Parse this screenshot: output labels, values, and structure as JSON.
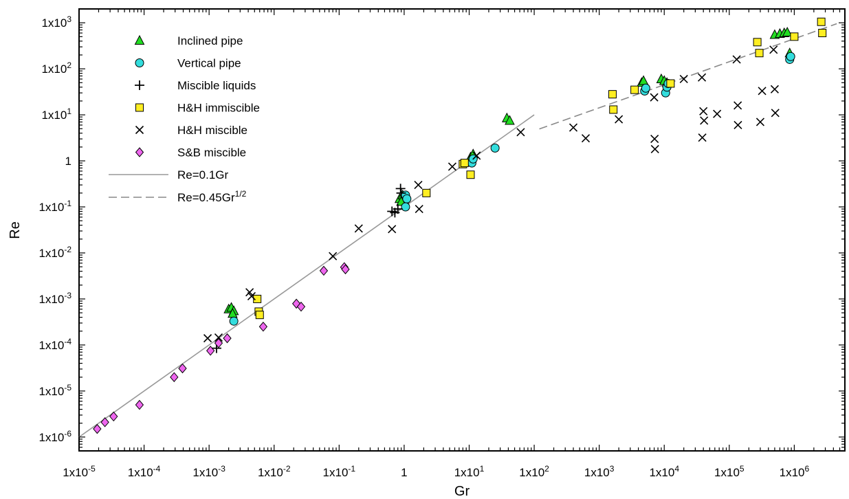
{
  "chart_data": {
    "type": "scatter",
    "xlabel": "Gr",
    "ylabel": "Re",
    "xscale": "log",
    "yscale": "log",
    "xlim": [
      1e-05,
      6000000.0
    ],
    "ylim": [
      5e-07,
      2000.0
    ],
    "xticks": [
      {
        "value": 1e-05,
        "label": "1x10",
        "exp": "-5"
      },
      {
        "value": 0.0001,
        "label": "1x10",
        "exp": "-4"
      },
      {
        "value": 0.001,
        "label": "1x10",
        "exp": "-3"
      },
      {
        "value": 0.01,
        "label": "1x10",
        "exp": "-2"
      },
      {
        "value": 0.1,
        "label": "1x10",
        "exp": "-1"
      },
      {
        "value": 1,
        "label": "1",
        "exp": ""
      },
      {
        "value": 10,
        "label": "1x10",
        "exp": "1"
      },
      {
        "value": 100,
        "label": "1x10",
        "exp": "2"
      },
      {
        "value": 1000,
        "label": "1x10",
        "exp": "3"
      },
      {
        "value": 10000,
        "label": "1x10",
        "exp": "4"
      },
      {
        "value": 100000,
        "label": "1x10",
        "exp": "5"
      },
      {
        "value": 1000000,
        "label": "1x10",
        "exp": "6"
      }
    ],
    "yticks": [
      {
        "value": 1e-06,
        "label": "1x10",
        "exp": "-6"
      },
      {
        "value": 1e-05,
        "label": "1x10",
        "exp": "-5"
      },
      {
        "value": 0.0001,
        "label": "1x10",
        "exp": "-4"
      },
      {
        "value": 0.001,
        "label": "1x10",
        "exp": "-3"
      },
      {
        "value": 0.01,
        "label": "1x10",
        "exp": "-2"
      },
      {
        "value": 0.1,
        "label": "1x10",
        "exp": "-1"
      },
      {
        "value": 1,
        "label": "1",
        "exp": ""
      },
      {
        "value": 10,
        "label": "1x10",
        "exp": "1"
      },
      {
        "value": 100,
        "label": "1x10",
        "exp": "2"
      },
      {
        "value": 1000,
        "label": "1x10",
        "exp": "3"
      }
    ],
    "grid": false,
    "legend_position": "top-left",
    "series": [
      {
        "name": "Inclined pipe",
        "marker": "triangle",
        "color": "#22dd22",
        "points": [
          [
            0.002,
            0.0006
          ],
          [
            0.0022,
            0.00065
          ],
          [
            0.0024,
            0.00055
          ],
          [
            0.0023,
            0.00048
          ],
          [
            0.85,
            0.15
          ],
          [
            0.95,
            0.18
          ],
          [
            1.0,
            0.14
          ],
          [
            0.9,
            0.13
          ],
          [
            10.5,
            1.2
          ],
          [
            11.5,
            1.4
          ],
          [
            38,
            8.5
          ],
          [
            42,
            7.5
          ],
          [
            4500,
            50
          ],
          [
            4800,
            55
          ],
          [
            9000,
            60
          ],
          [
            10000,
            55
          ],
          [
            11000,
            50
          ],
          [
            500000,
            550
          ],
          [
            600000,
            580
          ],
          [
            700000,
            600
          ],
          [
            780000,
            620
          ],
          [
            850000,
            220
          ]
        ]
      },
      {
        "name": "Vertical pipe",
        "marker": "circle",
        "color": "#33dddd",
        "points": [
          [
            0.0024,
            0.00033
          ],
          [
            1.05,
            0.18
          ],
          [
            1.1,
            0.15
          ],
          [
            1.05,
            0.1
          ],
          [
            11,
            0.9
          ],
          [
            11.5,
            1.1
          ],
          [
            25,
            1.9
          ],
          [
            5000,
            33
          ],
          [
            5200,
            38
          ],
          [
            10500,
            30
          ],
          [
            11000,
            40
          ],
          [
            11500,
            48
          ],
          [
            850000,
            160
          ],
          [
            880000,
            185
          ]
        ]
      },
      {
        "name": "Miscible liquids",
        "marker": "plus",
        "color": "#000000",
        "points": [
          [
            0.0013,
            8.5e-05
          ],
          [
            0.65,
            0.08
          ],
          [
            0.72,
            0.075
          ],
          [
            0.8,
            0.09
          ],
          [
            0.88,
            0.25
          ],
          [
            0.9,
            0.2
          ]
        ]
      },
      {
        "name": "H&H immiscible",
        "marker": "square",
        "color": "#ffee22",
        "points": [
          [
            0.0055,
            0.001
          ],
          [
            0.0058,
            0.00053
          ],
          [
            0.006,
            0.00045
          ],
          [
            2.2,
            0.2
          ],
          [
            8,
            0.85
          ],
          [
            8.5,
            0.9
          ],
          [
            10.5,
            0.5
          ],
          [
            1600,
            28
          ],
          [
            1650,
            13
          ],
          [
            3500,
            35
          ],
          [
            12500,
            48
          ],
          [
            270000,
            380
          ],
          [
            290000,
            220
          ],
          [
            1000000,
            500
          ],
          [
            2600000,
            1050
          ],
          [
            2700000,
            600
          ]
        ]
      },
      {
        "name": "H&H miscible",
        "marker": "x",
        "color": "#000000",
        "points": [
          [
            0.00095,
            0.00014
          ],
          [
            0.0014,
            0.000145
          ],
          [
            0.0042,
            0.0014
          ],
          [
            0.0045,
            0.00115
          ],
          [
            0.08,
            0.0085
          ],
          [
            0.2,
            0.034
          ],
          [
            0.65,
            0.033
          ],
          [
            1.65,
            0.3
          ],
          [
            1.7,
            0.09
          ],
          [
            5.5,
            0.75
          ],
          [
            13,
            1.3
          ],
          [
            62,
            4.2
          ],
          [
            400,
            5.3
          ],
          [
            620,
            3.1
          ],
          [
            2000,
            8
          ],
          [
            7000,
            24
          ],
          [
            7100,
            3
          ],
          [
            7200,
            1.8
          ],
          [
            20000,
            60
          ],
          [
            38000,
            65
          ],
          [
            38500,
            3.2
          ],
          [
            40000,
            12
          ],
          [
            41000,
            7.5
          ],
          [
            65000,
            10.5
          ],
          [
            130000,
            160
          ],
          [
            135000,
            16
          ],
          [
            136000,
            6
          ],
          [
            300000,
            7
          ],
          [
            320000,
            33
          ],
          [
            480000,
            260
          ],
          [
            500000,
            36
          ],
          [
            510000,
            11
          ]
        ]
      },
      {
        "name": "S&B miscible",
        "marker": "diamond",
        "color": "#ee66ee",
        "points": [
          [
            1.9e-05,
            1.5e-06
          ],
          [
            2.5e-05,
            2.1e-06
          ],
          [
            3.4e-05,
            2.8e-06
          ],
          [
            8.5e-05,
            5e-06
          ],
          [
            0.00029,
            2e-05
          ],
          [
            0.00039,
            3.1e-05
          ],
          [
            0.00105,
            7.5e-05
          ],
          [
            0.0014,
            0.00011
          ],
          [
            0.0019,
            0.00014
          ],
          [
            0.0068,
            0.00025
          ],
          [
            0.022,
            0.00079
          ],
          [
            0.026,
            0.00068
          ],
          [
            0.058,
            0.0041
          ],
          [
            0.12,
            0.0049
          ],
          [
            0.125,
            0.0044
          ]
        ]
      }
    ],
    "lines": [
      {
        "name": "Re=0.1Gr",
        "label": "Re=0.1Gr",
        "sup": "",
        "style": "solid",
        "color": "#999999",
        "coef": 0.1,
        "power": 1,
        "x_range": [
          1e-05,
          100
        ]
      },
      {
        "name": "Re=0.45Gr^1/2",
        "label": "Re=0.45Gr",
        "sup": "1/2",
        "style": "dashed",
        "color": "#888888",
        "coef": 0.45,
        "power": 0.5,
        "x_range": [
          120,
          4500000.0
        ]
      }
    ]
  }
}
